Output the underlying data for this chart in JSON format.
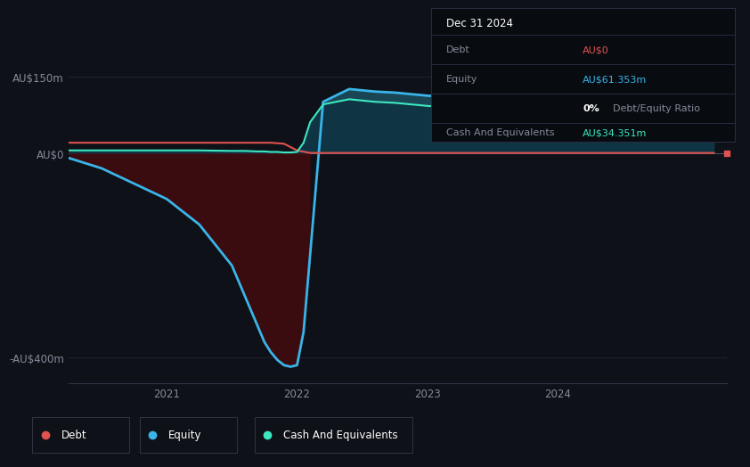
{
  "bg_color": "#0e1117",
  "plot_bg_color": "#0e1117",
  "title_box": {
    "date": "Dec 31 2024",
    "debt_label": "Debt",
    "debt_value": "AU$0",
    "equity_label": "Equity",
    "equity_value": "AU$61.353m",
    "ratio_text": "0% Debt/Equity Ratio",
    "ratio_pct": "0%",
    "ratio_label": "Debt/Equity Ratio",
    "cash_label": "Cash And Equivalents",
    "cash_value": "AU$34.351m"
  },
  "yticks": [
    "AU$150m",
    "AU$0",
    "-AU$400m"
  ],
  "ytick_values": [
    150,
    0,
    -400
  ],
  "ylim": [
    -450,
    210
  ],
  "xlim_start": 2020.25,
  "xlim_end": 2025.3,
  "xtick_labels": [
    "2021",
    "2022",
    "2023",
    "2024"
  ],
  "xtick_positions": [
    2021,
    2022,
    2023,
    2024
  ],
  "grid_color": "#252535",
  "debt_color": "#e05252",
  "equity_color": "#3ab4e8",
  "cash_color": "#3de8c0",
  "equity_fill_pos_color": "#1a4555",
  "equity_fill_neg_color": "#3a0c10",
  "cash_fill_color": "#0d3040",
  "legend_labels": [
    "Debt",
    "Equity",
    "Cash And Equivalents"
  ],
  "legend_colors": [
    "#e05252",
    "#3ab4e8",
    "#3de8c0"
  ],
  "time_equity": [
    2020.25,
    2020.5,
    2020.75,
    2021.0,
    2021.25,
    2021.5,
    2021.6,
    2021.7,
    2021.75,
    2021.8,
    2021.85,
    2021.9,
    2021.95,
    2022.0,
    2022.05,
    2022.1,
    2022.2,
    2022.4,
    2022.6,
    2022.75,
    2023.0,
    2023.25,
    2023.5,
    2023.75,
    2024.0,
    2024.25,
    2024.5,
    2024.75,
    2025.0,
    2025.2
  ],
  "equity_values": [
    -10,
    -30,
    -60,
    -90,
    -140,
    -220,
    -280,
    -340,
    -370,
    -390,
    -405,
    -415,
    -418,
    -415,
    -350,
    -200,
    100,
    125,
    120,
    118,
    112,
    108,
    104,
    98,
    93,
    88,
    80,
    72,
    64,
    61
  ],
  "time_cash": [
    2020.25,
    2020.5,
    2020.75,
    2021.0,
    2021.25,
    2021.5,
    2021.6,
    2021.7,
    2021.75,
    2021.8,
    2021.85,
    2021.9,
    2021.95,
    2022.0,
    2022.05,
    2022.1,
    2022.2,
    2022.4,
    2022.6,
    2022.75,
    2023.0,
    2023.25,
    2023.5,
    2023.75,
    2024.0,
    2024.25,
    2024.5,
    2024.75,
    2025.0,
    2025.2
  ],
  "cash_values": [
    5,
    5,
    5,
    5,
    5,
    4,
    4,
    3,
    3,
    2,
    2,
    1,
    1,
    2,
    20,
    60,
    95,
    105,
    100,
    98,
    92,
    88,
    85,
    82,
    78,
    72,
    65,
    55,
    40,
    34
  ],
  "time_debt": [
    2020.25,
    2020.5,
    2020.75,
    2021.0,
    2021.25,
    2021.5,
    2021.6,
    2021.7,
    2021.75,
    2021.8,
    2021.9,
    2022.0,
    2022.1,
    2022.5,
    2023.0,
    2023.5,
    2024.0,
    2024.5,
    2025.0,
    2025.2
  ],
  "debt_values": [
    20,
    20,
    20,
    20,
    20,
    20,
    20,
    20,
    20,
    20,
    18,
    5,
    0,
    0,
    0,
    0,
    0,
    0,
    0,
    0
  ],
  "dot_equity_y": 61,
  "dot_cash_y": 34,
  "dot_debt_y": 0
}
